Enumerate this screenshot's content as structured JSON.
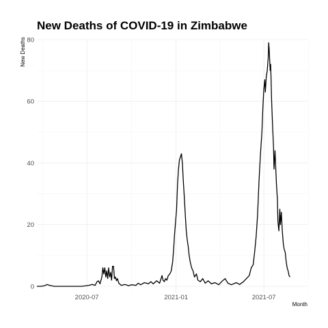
{
  "chart_data": {
    "type": "line",
    "title": "New Deaths of COVID-19 in Zimbabwe",
    "xlabel": "Month",
    "ylabel": "New Deaths",
    "xlim": [
      "2020-03-20",
      "2021-09-29"
    ],
    "ylim": [
      -2,
      80
    ],
    "x_ticks": [
      {
        "date": "2020-07-01",
        "label": "2020-07"
      },
      {
        "date": "2021-01-01",
        "label": "2021-01"
      },
      {
        "date": "2021-07-01",
        "label": "2021-07"
      }
    ],
    "x_minor_ticks": [
      "2020-04-01",
      "2020-10-01",
      "2021-04-01",
      "2021-10-01"
    ],
    "y_ticks": [
      0,
      20,
      40,
      60,
      80
    ],
    "y_minor_ticks": [
      10,
      30,
      50,
      70
    ],
    "grid": true,
    "legend": "none",
    "series": [
      {
        "color": "#000000",
        "points": [
          [
            "2020-03-20",
            0
          ],
          [
            "2020-03-28",
            0
          ],
          [
            "2020-04-05",
            0.2
          ],
          [
            "2020-04-10",
            0.6
          ],
          [
            "2020-04-15",
            0.3
          ],
          [
            "2020-04-25",
            0
          ],
          [
            "2020-05-15",
            0
          ],
          [
            "2020-06-05",
            0
          ],
          [
            "2020-06-20",
            0
          ],
          [
            "2020-07-05",
            0.3
          ],
          [
            "2020-07-12",
            0.6
          ],
          [
            "2020-07-18",
            0.3
          ],
          [
            "2020-07-22",
            1.5
          ],
          [
            "2020-07-25",
            1.8
          ],
          [
            "2020-07-28",
            0.8
          ],
          [
            "2020-08-01",
            3
          ],
          [
            "2020-08-03",
            6
          ],
          [
            "2020-08-05",
            4
          ],
          [
            "2020-08-07",
            6
          ],
          [
            "2020-08-09",
            3
          ],
          [
            "2020-08-11",
            5
          ],
          [
            "2020-08-13",
            2.5
          ],
          [
            "2020-08-15",
            6
          ],
          [
            "2020-08-17",
            3
          ],
          [
            "2020-08-19",
            4.5
          ],
          [
            "2020-08-21",
            2
          ],
          [
            "2020-08-23",
            6.5
          ],
          [
            "2020-08-25",
            6.5
          ],
          [
            "2020-08-27",
            2.5
          ],
          [
            "2020-08-29",
            3
          ],
          [
            "2020-08-31",
            1.8
          ],
          [
            "2020-09-02",
            2.5
          ],
          [
            "2020-09-05",
            1
          ],
          [
            "2020-09-10",
            0.3
          ],
          [
            "2020-09-18",
            0.6
          ],
          [
            "2020-09-25",
            0.2
          ],
          [
            "2020-10-01",
            0.5
          ],
          [
            "2020-10-10",
            0.3
          ],
          [
            "2020-10-15",
            1
          ],
          [
            "2020-10-20",
            0.5
          ],
          [
            "2020-10-28",
            1.2
          ],
          [
            "2020-11-05",
            0.8
          ],
          [
            "2020-11-10",
            1.5
          ],
          [
            "2020-11-15",
            0.8
          ],
          [
            "2020-11-22",
            1.8
          ],
          [
            "2020-11-28",
            1
          ],
          [
            "2020-12-01",
            2.5
          ],
          [
            "2020-12-03",
            3.5
          ],
          [
            "2020-12-05",
            2
          ],
          [
            "2020-12-08",
            1.5
          ],
          [
            "2020-12-10",
            2.5
          ],
          [
            "2020-12-13",
            2
          ],
          [
            "2020-12-16",
            3.5
          ],
          [
            "2020-12-19",
            4
          ],
          [
            "2020-12-22",
            5
          ],
          [
            "2020-12-25",
            8
          ],
          [
            "2020-12-27",
            12
          ],
          [
            "2020-12-29",
            17
          ],
          [
            "2020-12-31",
            21
          ],
          [
            "2021-01-02",
            25
          ],
          [
            "2021-01-04",
            33
          ],
          [
            "2021-01-06",
            38
          ],
          [
            "2021-01-08",
            41
          ],
          [
            "2021-01-10",
            42
          ],
          [
            "2021-01-12",
            43
          ],
          [
            "2021-01-14",
            40
          ],
          [
            "2021-01-16",
            34
          ],
          [
            "2021-01-18",
            29
          ],
          [
            "2021-01-20",
            23
          ],
          [
            "2021-01-22",
            18
          ],
          [
            "2021-01-24",
            15
          ],
          [
            "2021-01-26",
            13
          ],
          [
            "2021-01-28",
            10
          ],
          [
            "2021-01-30",
            8
          ],
          [
            "2021-02-02",
            6
          ],
          [
            "2021-02-05",
            5
          ],
          [
            "2021-02-08",
            3
          ],
          [
            "2021-02-12",
            4
          ],
          [
            "2021-02-15",
            2
          ],
          [
            "2021-02-20",
            1.5
          ],
          [
            "2021-02-25",
            2.5
          ],
          [
            "2021-03-02",
            1
          ],
          [
            "2021-03-08",
            1.8
          ],
          [
            "2021-03-15",
            0.8
          ],
          [
            "2021-03-22",
            1.2
          ],
          [
            "2021-03-30",
            0.5
          ],
          [
            "2021-04-05",
            1.5
          ],
          [
            "2021-04-12",
            2.5
          ],
          [
            "2021-04-18",
            1
          ],
          [
            "2021-04-25",
            0.5
          ],
          [
            "2021-05-05",
            1.2
          ],
          [
            "2021-05-12",
            0.6
          ],
          [
            "2021-05-20",
            1.5
          ],
          [
            "2021-05-26",
            2.5
          ],
          [
            "2021-06-01",
            3.5
          ],
          [
            "2021-06-05",
            6
          ],
          [
            "2021-06-09",
            7
          ],
          [
            "2021-06-12",
            11
          ],
          [
            "2021-06-15",
            16
          ],
          [
            "2021-06-18",
            23
          ],
          [
            "2021-06-21",
            34
          ],
          [
            "2021-06-24",
            43
          ],
          [
            "2021-06-27",
            50
          ],
          [
            "2021-06-29",
            58
          ],
          [
            "2021-07-01",
            64
          ],
          [
            "2021-07-03",
            67
          ],
          [
            "2021-07-04",
            63
          ],
          [
            "2021-07-06",
            68
          ],
          [
            "2021-07-08",
            70
          ],
          [
            "2021-07-10",
            74
          ],
          [
            "2021-07-11",
            79
          ],
          [
            "2021-07-12",
            77
          ],
          [
            "2021-07-14",
            70
          ],
          [
            "2021-07-15",
            72
          ],
          [
            "2021-07-17",
            60
          ],
          [
            "2021-07-19",
            52
          ],
          [
            "2021-07-21",
            45
          ],
          [
            "2021-07-22",
            38
          ],
          [
            "2021-07-24",
            44
          ],
          [
            "2021-07-25",
            40
          ],
          [
            "2021-07-27",
            33
          ],
          [
            "2021-07-29",
            28
          ],
          [
            "2021-07-30",
            21
          ],
          [
            "2021-08-01",
            18
          ],
          [
            "2021-08-03",
            25
          ],
          [
            "2021-08-04",
            20
          ],
          [
            "2021-08-06",
            24
          ],
          [
            "2021-08-08",
            18
          ],
          [
            "2021-08-10",
            14
          ],
          [
            "2021-08-12",
            12
          ],
          [
            "2021-08-14",
            11
          ],
          [
            "2021-08-16",
            8
          ],
          [
            "2021-08-18",
            6
          ],
          [
            "2021-08-20",
            5
          ],
          [
            "2021-08-22",
            3.5
          ],
          [
            "2021-08-24",
            3
          ]
        ]
      }
    ]
  }
}
